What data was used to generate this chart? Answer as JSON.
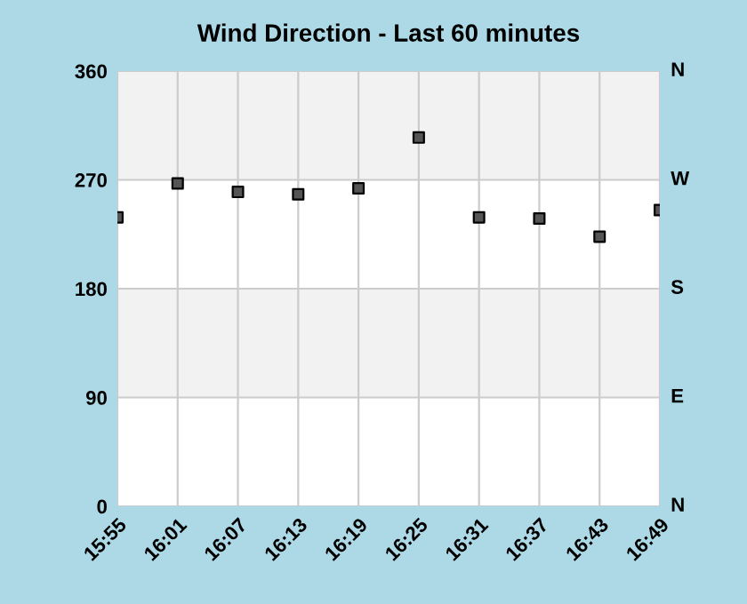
{
  "chart_data": {
    "type": "scatter",
    "title": "Wind Direction - Last 60 minutes",
    "x": [
      15.91667,
      16.01667,
      16.11667,
      16.21667,
      16.31667,
      16.41667,
      16.51667,
      16.61667,
      16.71667,
      16.81667
    ],
    "series": [
      {
        "color": "#555555",
        "values": [
          239,
          267,
          260,
          258,
          263,
          305,
          239,
          238,
          223,
          245
        ]
      }
    ],
    "marker": "square",
    "xlim": [
      15.91667,
      16.81667
    ],
    "xticks": [
      {
        "value": 15.91667,
        "label": "15:55"
      },
      {
        "value": 16.01667,
        "label": "16:01"
      },
      {
        "value": 16.11667,
        "label": "16:07"
      },
      {
        "value": 16.21667,
        "label": "16:13"
      },
      {
        "value": 16.31667,
        "label": "16:19"
      },
      {
        "value": 16.41667,
        "label": "16:25"
      },
      {
        "value": 16.51667,
        "label": "16:31"
      },
      {
        "value": 16.61667,
        "label": "16:37"
      },
      {
        "value": 16.71667,
        "label": "16:43"
      },
      {
        "value": 16.81667,
        "label": "16:49"
      }
    ],
    "ylim": [
      0,
      360
    ],
    "yticks": [
      0,
      90,
      180,
      270,
      360
    ],
    "annotations": [
      "N",
      "W",
      "S",
      "E",
      "N"
    ],
    "bands": [
      {
        "axis": "y",
        "from": 90,
        "to": 180,
        "color": "#f2f2f2"
      },
      {
        "axis": "y",
        "from": 270,
        "to": 360,
        "color": "#f2f2f2"
      }
    ],
    "grid": true
  }
}
